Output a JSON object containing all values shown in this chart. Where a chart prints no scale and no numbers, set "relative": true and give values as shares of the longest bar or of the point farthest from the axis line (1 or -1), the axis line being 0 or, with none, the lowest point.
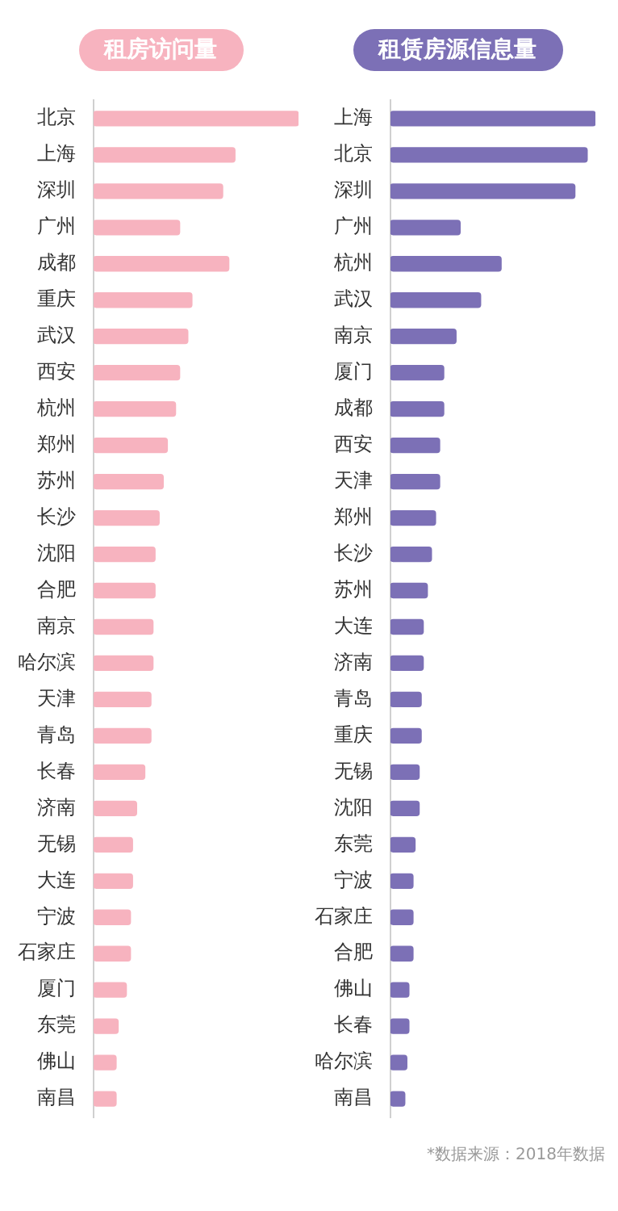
{
  "chart_data": [
    {
      "type": "bar",
      "orientation": "horizontal",
      "relative": true,
      "title": "租房访问量",
      "color": "#f7b3bf",
      "categories": [
        "北京",
        "上海",
        "深圳",
        "广州",
        "成都",
        "重庆",
        "武汉",
        "西安",
        "杭州",
        "郑州",
        "苏州",
        "长沙",
        "沈阳",
        "合肥",
        "南京",
        "哈尔滨",
        "天津",
        "青岛",
        "长春",
        "济南",
        "无锡",
        "大连",
        "宁波",
        "石家庄",
        "厦门",
        "东莞",
        "佛山",
        "南昌"
      ],
      "values": [
        1,
        0.69,
        0.63,
        0.42,
        0.66,
        0.48,
        0.46,
        0.42,
        0.4,
        0.36,
        0.34,
        0.32,
        0.3,
        0.3,
        0.29,
        0.29,
        0.28,
        0.28,
        0.25,
        0.21,
        0.19,
        0.19,
        0.18,
        0.18,
        0.16,
        0.12,
        0.11,
        0.11
      ]
    },
    {
      "type": "bar",
      "orientation": "horizontal",
      "relative": true,
      "title": "租赁房源信息量",
      "color": "#7c70b6",
      "categories": [
        "上海",
        "北京",
        "深圳",
        "广州",
        "杭州",
        "武汉",
        "南京",
        "厦门",
        "成都",
        "西安",
        "天津",
        "郑州",
        "长沙",
        "苏州",
        "大连",
        "济南",
        "青岛",
        "重庆",
        "无锡",
        "沈阳",
        "东莞",
        "宁波",
        "石家庄",
        "合肥",
        "佛山",
        "长春",
        "哈尔滨",
        "南昌"
      ],
      "values": [
        1,
        0.96,
        0.9,
        0.34,
        0.54,
        0.44,
        0.32,
        0.26,
        0.26,
        0.24,
        0.24,
        0.22,
        0.2,
        0.18,
        0.16,
        0.16,
        0.15,
        0.15,
        0.14,
        0.14,
        0.12,
        0.11,
        0.11,
        0.11,
        0.09,
        0.09,
        0.08,
        0.07
      ],
      "annotations": [
        "*数据来源：2018年数据"
      ]
    }
  ]
}
